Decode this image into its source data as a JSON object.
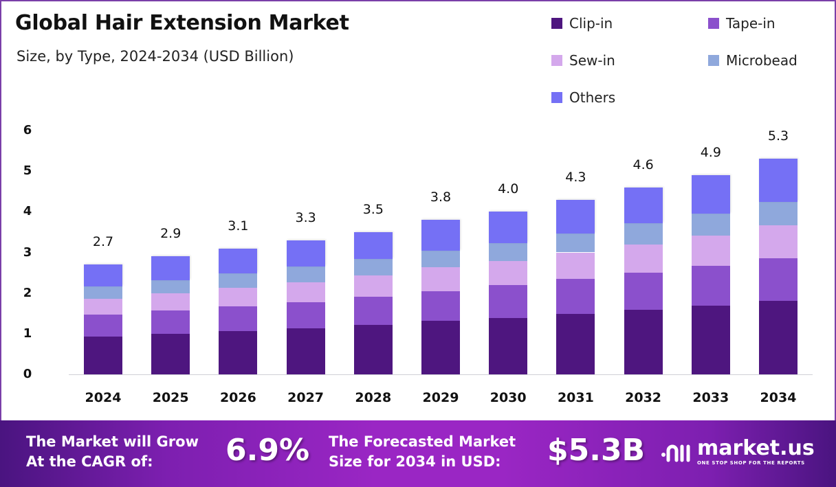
{
  "header": {
    "title": "Global Hair Extension Market",
    "subtitle": "Size, by Type, 2024-2034 (USD Billion)"
  },
  "chart_data": {
    "type": "bar",
    "stacked": true,
    "title": "Global Hair Extension Market",
    "subtitle": "Size, by Type, 2024-2034 (USD Billion)",
    "xlabel": "",
    "ylabel": "",
    "ylim": [
      0,
      6
    ],
    "yticks": [
      "0",
      "1",
      "2",
      "3",
      "4",
      "5",
      "6"
    ],
    "grid": false,
    "legend_position": "top-right",
    "categories": [
      "2024",
      "2025",
      "2026",
      "2027",
      "2028",
      "2029",
      "2030",
      "2031",
      "2032",
      "2033",
      "2034"
    ],
    "totals": [
      "2.7",
      "2.9",
      "3.1",
      "3.3",
      "3.5",
      "3.8",
      "4.0",
      "4.3",
      "4.6",
      "4.9",
      "5.3"
    ],
    "series": [
      {
        "name": "Clip-in",
        "color": "#4e167f",
        "values": [
          0.93,
          0.99,
          1.06,
          1.13,
          1.22,
          1.31,
          1.39,
          1.49,
          1.59,
          1.69,
          1.81
        ]
      },
      {
        "name": "Tape-in",
        "color": "#8b50cc",
        "values": [
          0.54,
          0.58,
          0.61,
          0.65,
          0.69,
          0.74,
          0.8,
          0.86,
          0.91,
          0.98,
          1.05
        ]
      },
      {
        "name": "Sew-in",
        "color": "#d4a8ec",
        "values": [
          0.39,
          0.42,
          0.46,
          0.49,
          0.53,
          0.58,
          0.6,
          0.65,
          0.7,
          0.74,
          0.8
        ]
      },
      {
        "name": "Microbead",
        "color": "#8fa8dc",
        "values": [
          0.31,
          0.33,
          0.35,
          0.38,
          0.4,
          0.42,
          0.44,
          0.47,
          0.51,
          0.55,
          0.58
        ]
      },
      {
        "name": "Others",
        "color": "#7570f5",
        "values": [
          0.53,
          0.58,
          0.62,
          0.65,
          0.66,
          0.75,
          0.77,
          0.83,
          0.89,
          0.94,
          1.06
        ]
      }
    ]
  },
  "footer": {
    "cagr_label_line1": "The Market will Grow",
    "cagr_label_line2": "At the CAGR of:",
    "cagr_value": "6.9%",
    "forecast_label_line1": "The Forecasted Market",
    "forecast_label_line2": "Size for 2034 in USD:",
    "forecast_value": "$5.3B",
    "brand_name": "market.us",
    "brand_tagline": "ONE STOP SHOP FOR THE REPORTS"
  }
}
